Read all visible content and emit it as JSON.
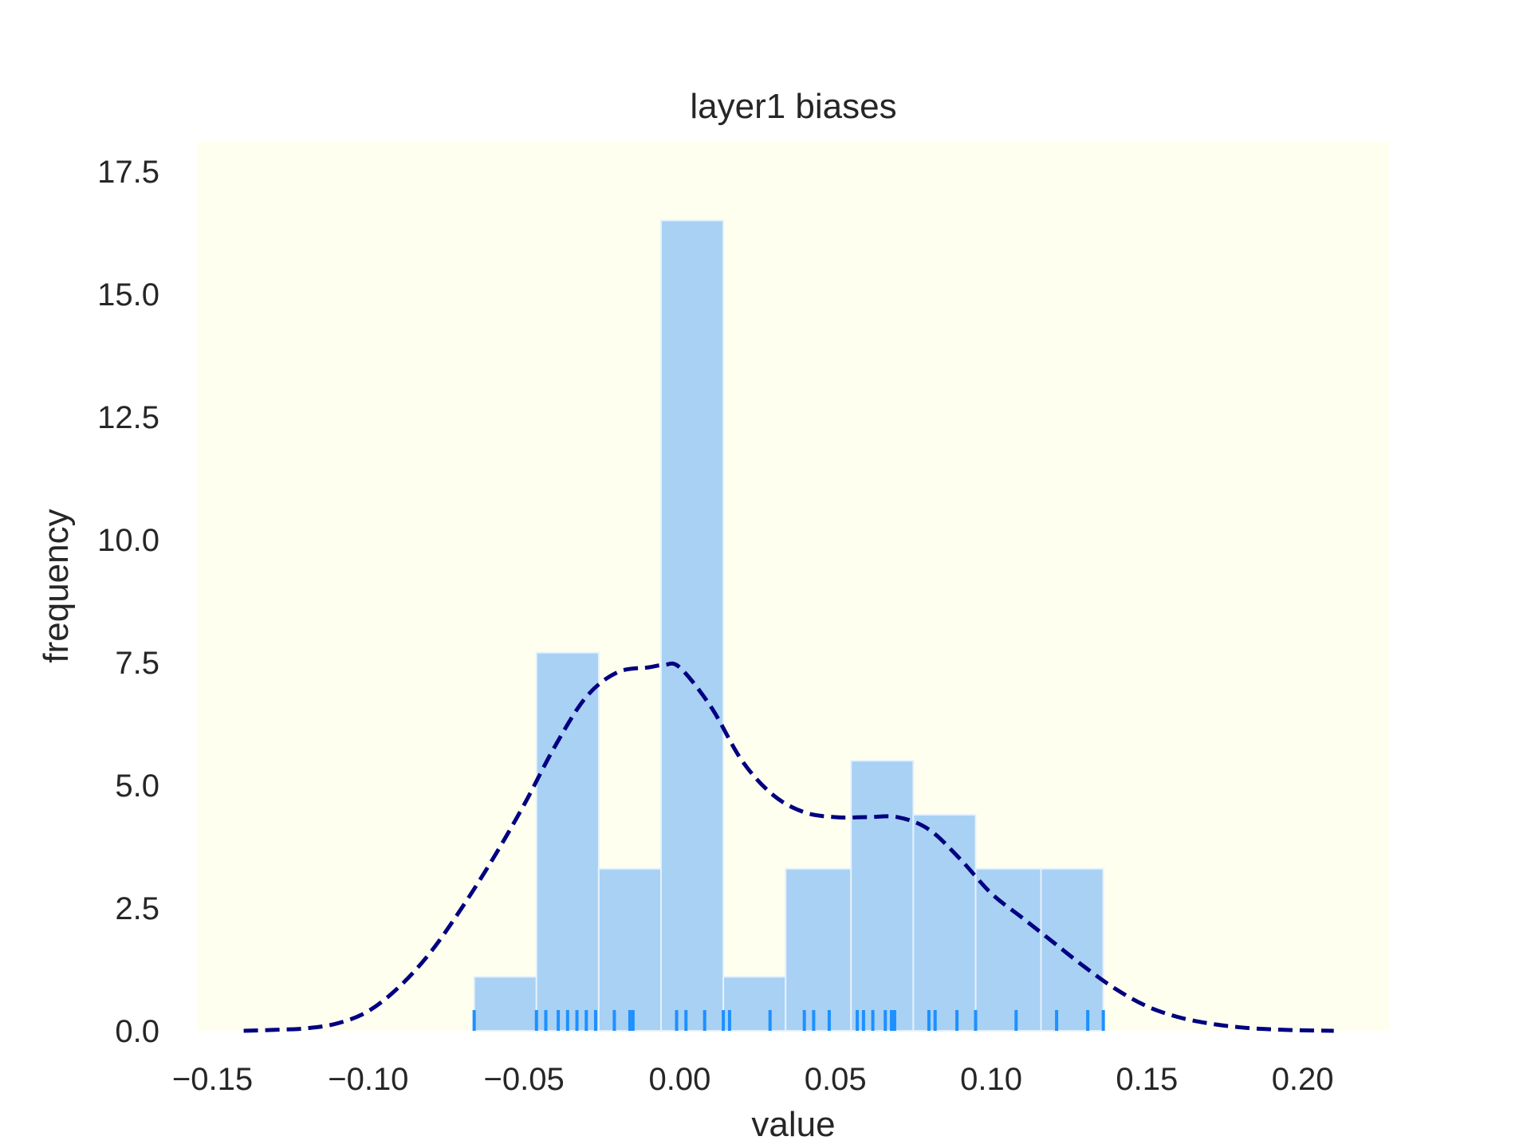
{
  "chart_data": {
    "type": "bar",
    "title": "layer1 biases",
    "xlabel": "value",
    "ylabel": "frequency",
    "xlim": [
      -0.155,
      0.228
    ],
    "ylim": [
      0,
      18.1
    ],
    "xticks": [
      -0.15,
      -0.1,
      -0.05,
      0.0,
      0.05,
      0.1,
      0.15,
      0.2
    ],
    "xtick_labels": [
      "−0.15",
      "−0.10",
      "−0.05",
      "0.00",
      "0.05",
      "0.10",
      "0.15",
      "0.20"
    ],
    "yticks": [
      0.0,
      2.5,
      5.0,
      7.5,
      10.0,
      12.5,
      15.0,
      17.5
    ],
    "ytick_labels": [
      "0.0",
      "2.5",
      "5.0",
      "7.5",
      "10.0",
      "12.5",
      "15.0",
      "17.5"
    ],
    "grid": false,
    "plot_background": "#fffff0",
    "bar_color": "#a8d1f4",
    "bar_edge_color": "#e6f1fb",
    "kde_color": "#000080",
    "rug_color": "#1e90ff",
    "bins": [
      {
        "x0": -0.066,
        "x1": -0.046,
        "value": 1.1
      },
      {
        "x0": -0.046,
        "x1": -0.026,
        "value": 7.7
      },
      {
        "x0": -0.026,
        "x1": -0.006,
        "value": 3.3
      },
      {
        "x0": -0.006,
        "x1": 0.014,
        "value": 16.5
      },
      {
        "x0": 0.014,
        "x1": 0.034,
        "value": 1.1
      },
      {
        "x0": 0.034,
        "x1": 0.055,
        "value": 3.3
      },
      {
        "x0": 0.055,
        "x1": 0.075,
        "value": 5.5
      },
      {
        "x0": 0.075,
        "x1": 0.095,
        "value": 4.4
      },
      {
        "x0": 0.095,
        "x1": 0.116,
        "value": 3.3
      },
      {
        "x0": 0.116,
        "x1": 0.136,
        "value": 3.3
      }
    ],
    "kde": {
      "x": [
        -0.14,
        -0.13,
        -0.12,
        -0.11,
        -0.1,
        -0.09,
        -0.08,
        -0.07,
        -0.06,
        -0.05,
        -0.04,
        -0.03,
        -0.02,
        -0.01,
        -0.005,
        0.0,
        0.01,
        0.02,
        0.03,
        0.04,
        0.05,
        0.06,
        0.07,
        0.08,
        0.09,
        0.1,
        0.11,
        0.12,
        0.13,
        0.14,
        0.15,
        0.16,
        0.17,
        0.18,
        0.19,
        0.2,
        0.21
      ],
      "y": [
        0.0,
        0.02,
        0.05,
        0.15,
        0.4,
        0.9,
        1.6,
        2.5,
        3.5,
        4.6,
        5.8,
        6.8,
        7.3,
        7.4,
        7.45,
        7.4,
        6.6,
        5.5,
        4.8,
        4.45,
        4.35,
        4.35,
        4.35,
        4.1,
        3.5,
        2.8,
        2.3,
        1.8,
        1.3,
        0.85,
        0.5,
        0.28,
        0.15,
        0.07,
        0.03,
        0.01,
        0.0
      ]
    },
    "rug": [
      -0.066,
      -0.046,
      -0.043,
      -0.039,
      -0.036,
      -0.033,
      -0.03,
      -0.027,
      -0.021,
      -0.016,
      -0.015,
      -0.001,
      0.002,
      0.008,
      0.014,
      0.016,
      0.029,
      0.04,
      0.043,
      0.048,
      0.057,
      0.059,
      0.062,
      0.066,
      0.068,
      0.069,
      0.08,
      0.082,
      0.089,
      0.095,
      0.108,
      0.121,
      0.131,
      0.136
    ]
  }
}
